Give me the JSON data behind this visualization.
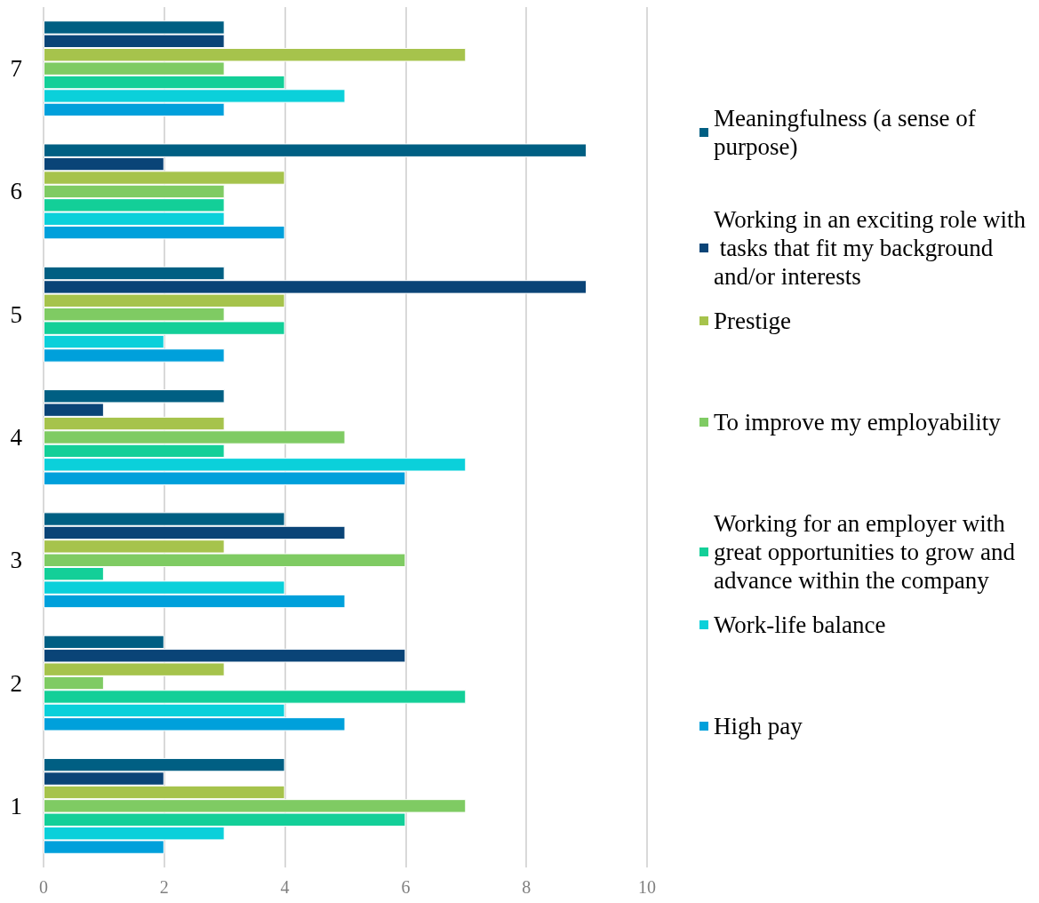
{
  "chart_data": {
    "type": "bar",
    "orientation": "horizontal",
    "categories": [
      "7",
      "6",
      "5",
      "4",
      "3",
      "2",
      "1"
    ],
    "series": [
      {
        "name": "Meaningfulness (a sense of purpose)",
        "color": "#005f83",
        "values": [
          3,
          9,
          3,
          3,
          4,
          2,
          4
        ]
      },
      {
        "name": "Working in an exciting role with tasks that fit my background and/or interests",
        "color": "#0a4477",
        "values": [
          3,
          2,
          9,
          1,
          5,
          6,
          2
        ]
      },
      {
        "name": "Prestige",
        "color": "#a6c34c",
        "values": [
          7,
          4,
          4,
          3,
          3,
          3,
          4
        ]
      },
      {
        "name": "To improve my employability",
        "color": "#7fcb63",
        "values": [
          3,
          3,
          3,
          5,
          6,
          1,
          7
        ]
      },
      {
        "name": "Working for an employer with great opportunities to grow and advance within the company",
        "color": "#13cf98",
        "values": [
          4,
          3,
          4,
          3,
          1,
          7,
          6
        ]
      },
      {
        "name": "Work-life balance",
        "color": "#0bd0da",
        "values": [
          5,
          3,
          2,
          7,
          4,
          4,
          3
        ]
      },
      {
        "name": "High pay",
        "color": "#00a0db",
        "values": [
          3,
          4,
          3,
          6,
          5,
          5,
          2
        ]
      }
    ],
    "xlim": [
      0,
      10
    ],
    "xticks": [
      0,
      2,
      4,
      6,
      8,
      10
    ],
    "grid": "x",
    "legend": "right"
  }
}
